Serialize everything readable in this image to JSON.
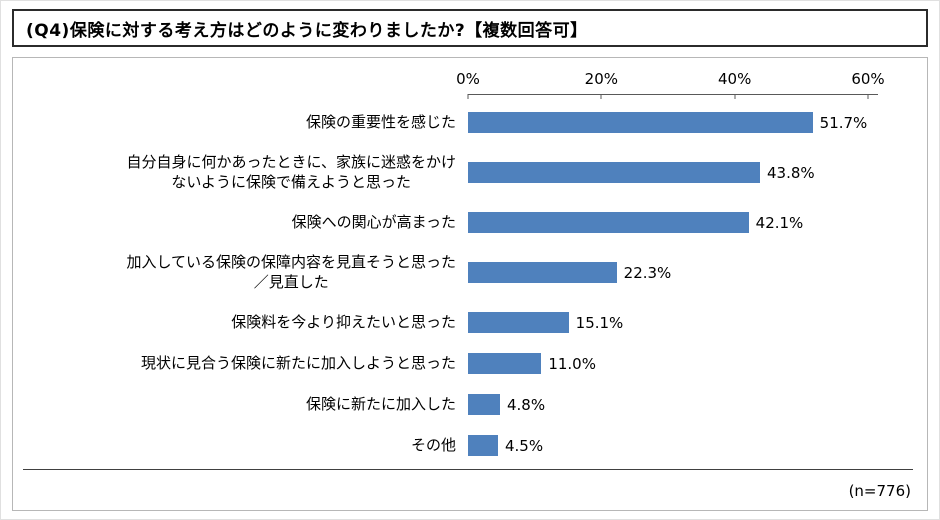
{
  "title": "(Q4)保険に対する考え方はどのように変わりましたか?【複数回答可】",
  "chart_data": {
    "type": "bar",
    "orientation": "horizontal",
    "title": "(Q4)保険に対する考え方はどのように変わりましたか?【複数回答可】",
    "categories": [
      "保険の重要性を感じた",
      "自分自身に何かあったときに、家族に迷惑をかけ\nないように保険で備えようと思った",
      "保険への関心が高まった",
      "加入している保険の保障内容を見直そうと思った\n／見直した",
      "保険料を今より抑えたいと思った",
      "現状に見合う保険に新たに加入しようと思った",
      "保険に新たに加入した",
      "その他"
    ],
    "values": [
      51.7,
      43.8,
      42.1,
      22.3,
      15.1,
      11.0,
      4.8,
      4.5
    ],
    "value_labels": [
      "51.7%",
      "43.8%",
      "42.1%",
      "22.3%",
      "15.1%",
      "11.0%",
      "4.8%",
      "4.5%"
    ],
    "x_axis": {
      "ticks": [
        "0%",
        "20%",
        "40%",
        "60%"
      ],
      "tick_values": [
        0,
        20,
        40,
        60
      ],
      "max": 60
    },
    "xlim": [
      0,
      60
    ],
    "grid": false,
    "legend": "none",
    "bar_color": "#4F81BD",
    "note": "(n=776)"
  }
}
